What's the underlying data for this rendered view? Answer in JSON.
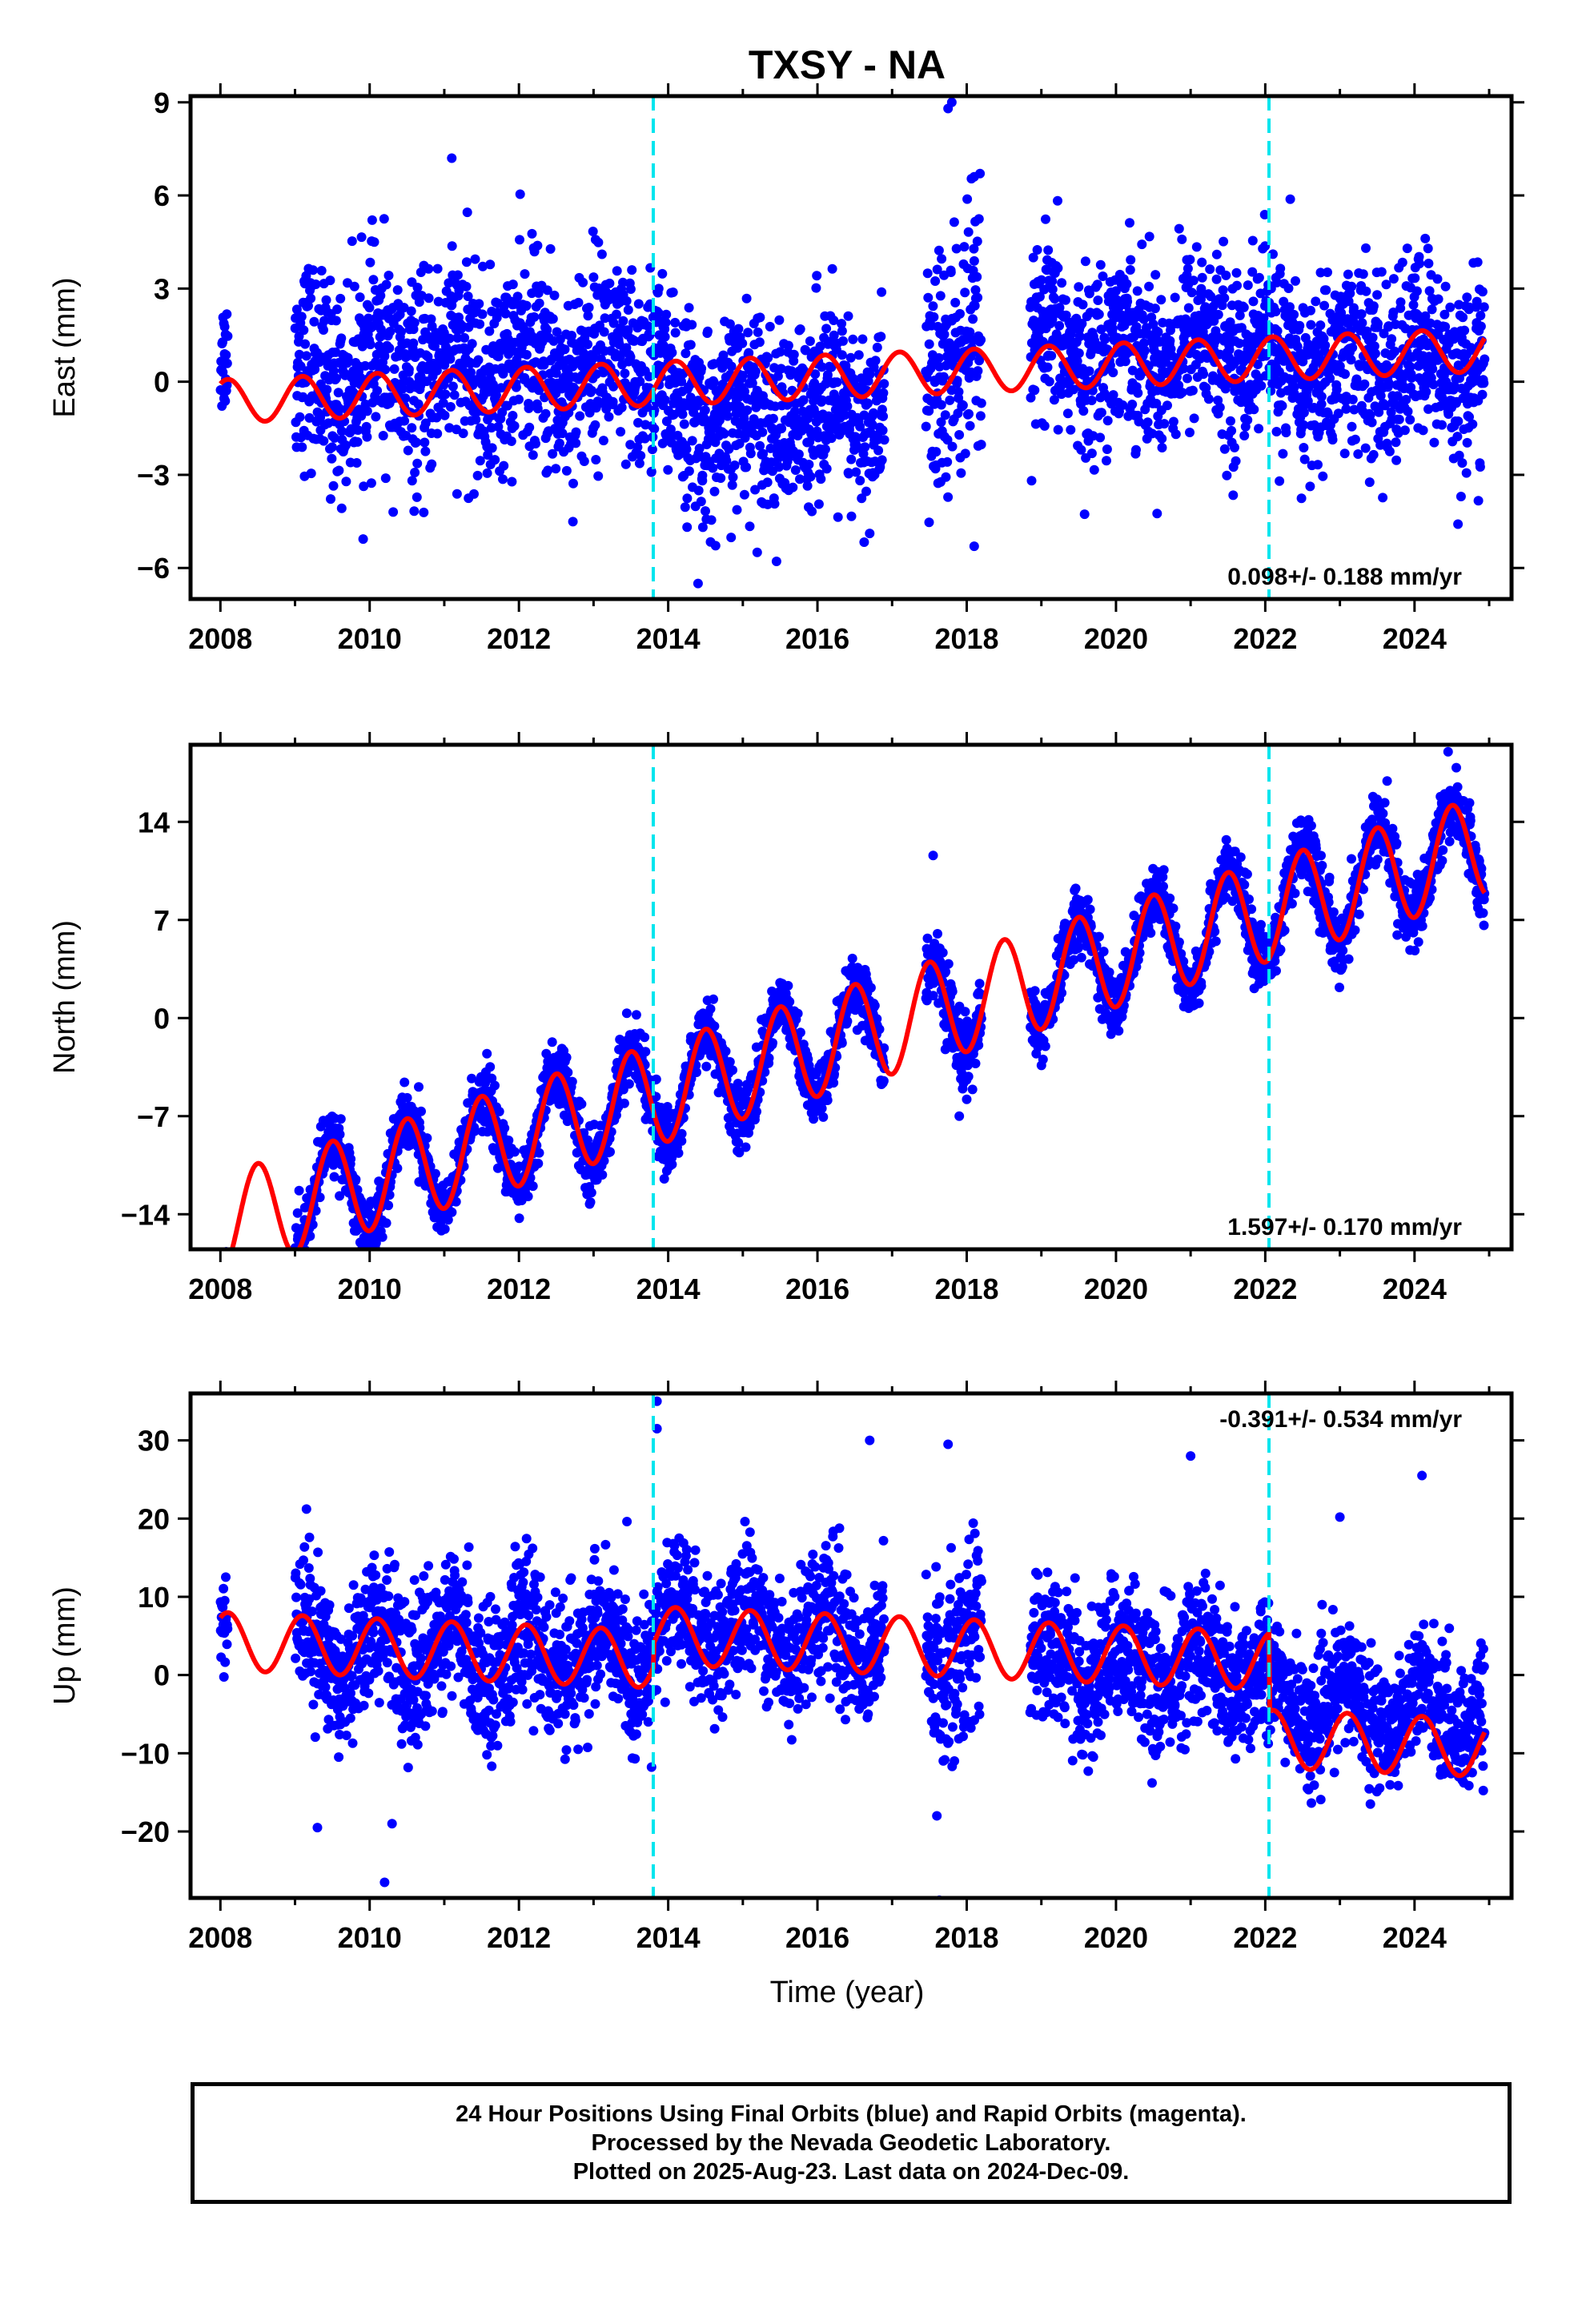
{
  "chart_data": {
    "type": "scatter",
    "title": "TXSY - NA",
    "xlabel": "Time (year)",
    "x_ticks": [
      "2008",
      "2010",
      "2012",
      "2014",
      "2016",
      "2018",
      "2020",
      "2022",
      "2024"
    ],
    "xlim": [
      2007.6,
      2025.3
    ],
    "event_lines": [
      2013.8,
      2022.05
    ],
    "colors": {
      "points": "#0000ff",
      "model": "#ff0000",
      "events": "#00e5ee",
      "frame": "#000000"
    },
    "panels": [
      {
        "name": "east",
        "ylabel": "East (mm)",
        "ylim": [
          -7,
          9.2
        ],
        "yticks": [
          -6,
          -3,
          0,
          3,
          6,
          9
        ],
        "ytick_labels": [
          "−6",
          "−3",
          "0",
          "3",
          "6",
          "9"
        ],
        "rate_text": "0.098+/- 0.188 mm/yr",
        "rate_position": "bottom-right",
        "model": {
          "trend_mm_per_yr": 0.098,
          "amplitude_mm": 0.7,
          "phase_year": 0.85,
          "offset_mm": 0.2
        },
        "data_points": {
          "seg": [
            [
              2008.0,
              2008.1
            ],
            [
              2009.0,
              2013.95
            ],
            [
              2013.95,
              2016.9
            ],
            [
              2017.45,
              2018.2
            ],
            [
              2018.85,
              2022.05
            ],
            [
              2022.05,
              2024.94
            ]
          ],
          "mean_mm": [
            1.5,
            1.2,
            -2.0,
            0.5,
            1.0,
            -0.4
          ],
          "scatter_mm": [
            1.0,
            1.6,
            1.5,
            2.2,
            1.4,
            1.5
          ],
          "outliers": [
            [
              2017.8,
              9.0
            ],
            [
              2017.75,
              8.8
            ],
            [
              2018.1,
              6.6
            ],
            [
              2018.1,
              -5.3
            ],
            [
              2014.4,
              -6.5
            ],
            [
              2011.1,
              7.2
            ]
          ]
        }
      },
      {
        "name": "north",
        "ylabel": "North (mm)",
        "ylim": [
          -16.5,
          19.5
        ],
        "yticks": [
          -14,
          -7,
          0,
          7,
          14
        ],
        "ytick_labels": [
          "−14",
          "−7",
          "0",
          "7",
          "14"
        ],
        "rate_text": "1.597+/- 0.170 mm/yr",
        "rate_position": "bottom-right",
        "model": {
          "trend_mm_per_yr": 1.597,
          "amplitude_mm": 3.6,
          "phase_year": 0.25,
          "offset_mm": -1.2
        },
        "data_points": {
          "seg": [
            [
              2008.0,
              2008.1
            ],
            [
              2009.0,
              2013.95
            ],
            [
              2013.95,
              2016.9
            ],
            [
              2017.45,
              2018.2
            ],
            [
              2018.85,
              2022.05
            ],
            [
              2022.05,
              2024.94
            ]
          ],
          "mean_mm": [
            0.0,
            0.0,
            0.0,
            0.0,
            0.0,
            0.0
          ],
          "scatter_mm": [
            0.7,
            1.1,
            1.1,
            1.3,
            1.1,
            1.2
          ],
          "outliers": [
            [
              2017.55,
              11.6
            ],
            [
              2017.9,
              -7.0
            ],
            [
              2018.0,
              -5.8
            ],
            [
              2024.45,
              19.0
            ],
            [
              2009.1,
              -15.0
            ]
          ]
        }
      },
      {
        "name": "up",
        "ylabel": "Up (mm)",
        "ylim": [
          -28.5,
          36
        ],
        "yticks": [
          -20,
          -10,
          0,
          10,
          20,
          30
        ],
        "ytick_labels": [
          "−20",
          "−10",
          "0",
          "10",
          "20",
          "30"
        ],
        "rate_text": "-0.391+/- 0.534 mm/yr",
        "rate_position": "top-right",
        "model": {
          "trend_mm_per_yr": -0.391,
          "amplitude_mm": 3.7,
          "phase_year": 0.85,
          "offset_mm": 1.0
        },
        "data_points": {
          "seg": [
            [
              2008.0,
              2008.1
            ],
            [
              2009.0,
              2013.8
            ],
            [
              2013.8,
              2016.9
            ],
            [
              2017.45,
              2018.2
            ],
            [
              2018.85,
              2022.05
            ],
            [
              2022.05,
              2024.94
            ]
          ],
          "mean_mm": [
            0.0,
            0.5,
            8.0,
            5.0,
            2.5,
            -4.5
          ],
          "scatter_mm": [
            3.0,
            4.5,
            4.2,
            6.0,
            4.6,
            3.8
          ],
          "outliers": [
            [
              2013.85,
              35.0
            ],
            [
              2013.85,
              31.5
            ],
            [
              2016.7,
              30.0
            ],
            [
              2017.75,
              29.5
            ],
            [
              2021.0,
              28.0
            ],
            [
              2024.1,
              25.5
            ],
            [
              2023.0,
              20.2
            ],
            [
              2010.2,
              -26.5
            ],
            [
              2017.6,
              -18.0
            ],
            [
              2009.3,
              -19.5
            ],
            [
              2010.3,
              -19.0
            ]
          ]
        }
      }
    ],
    "footer_lines": [
      "24 Hour Positions Using Final Orbits (blue) and Rapid Orbits (magenta).",
      "Processed by the Nevada Geodetic Laboratory.",
      "Plotted on 2025-Aug-23. Last data on 2024-Dec-09."
    ]
  }
}
